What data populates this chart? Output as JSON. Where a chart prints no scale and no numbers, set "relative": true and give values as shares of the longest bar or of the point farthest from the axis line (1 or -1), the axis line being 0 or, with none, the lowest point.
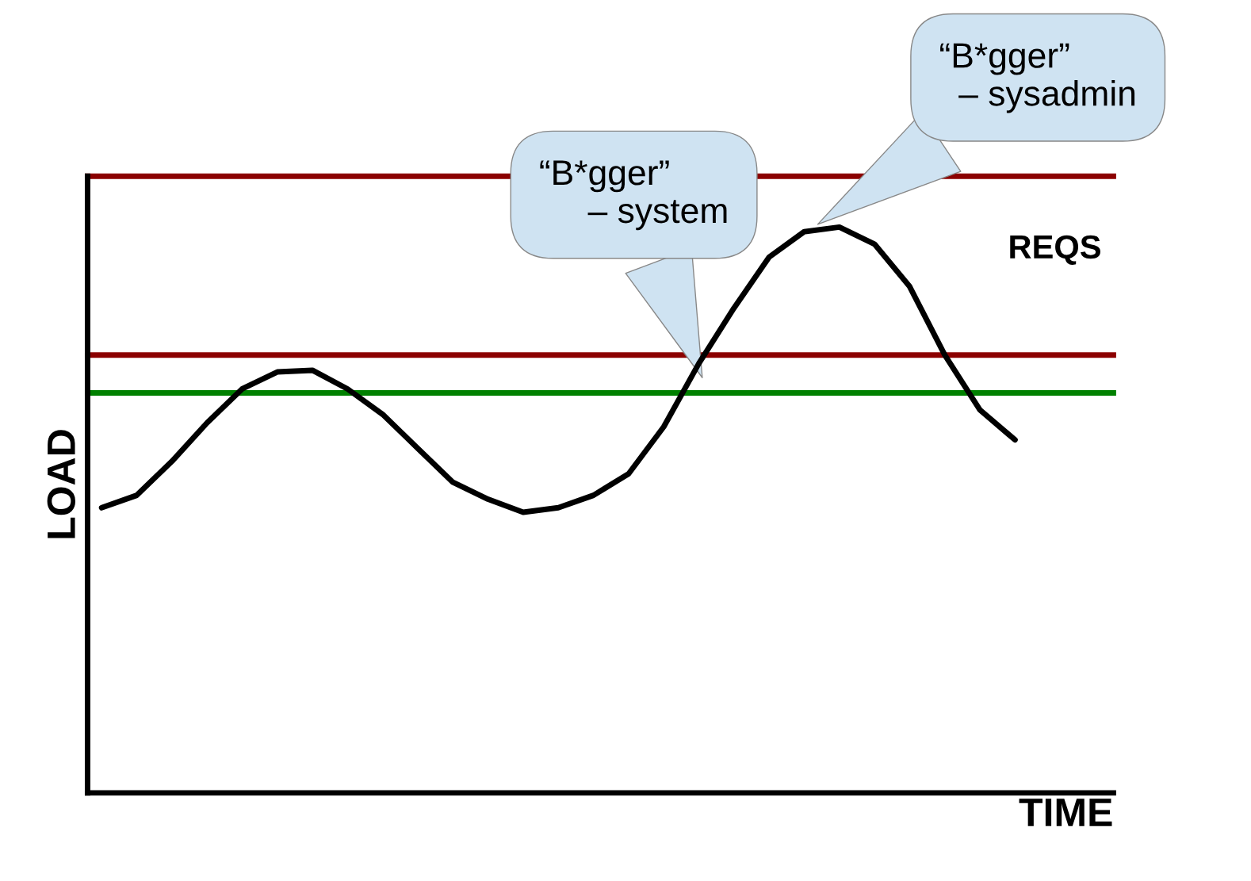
{
  "chart_data": {
    "type": "line",
    "relative": true,
    "xlabel": "TIME",
    "ylabel": "LOAD",
    "categories": [
      null,
      null,
      null,
      null,
      null,
      null,
      null,
      null,
      null,
      null,
      null,
      null,
      null,
      null,
      null,
      null,
      null,
      null,
      null,
      null,
      null,
      null,
      null,
      null,
      null,
      null,
      null
    ],
    "series": [
      {
        "name": "REQS",
        "color": "#000000",
        "values": [
          0.504,
          0.526,
          0.586,
          0.654,
          0.714,
          0.744,
          0.747,
          0.714,
          0.669,
          0.609,
          0.549,
          0.519,
          0.496,
          0.504,
          0.526,
          0.564,
          0.647,
          0.759,
          0.857,
          0.947,
          0.992,
          1.0,
          0.97,
          0.895,
          0.774,
          0.677,
          0.624
        ]
      }
    ],
    "ref_lines": [
      {
        "axis": "y",
        "value": 1.09,
        "color": "#8b0000"
      },
      {
        "axis": "y",
        "value": 0.774,
        "color": "#8b0000"
      },
      {
        "axis": "y",
        "value": 0.707,
        "color": "#008000"
      }
    ],
    "annotations": [
      "“B*gger”\n     – system",
      "“B*gger”\n  – sysadmin"
    ],
    "legend": false,
    "marker": "none",
    "line_style": "solid"
  }
}
